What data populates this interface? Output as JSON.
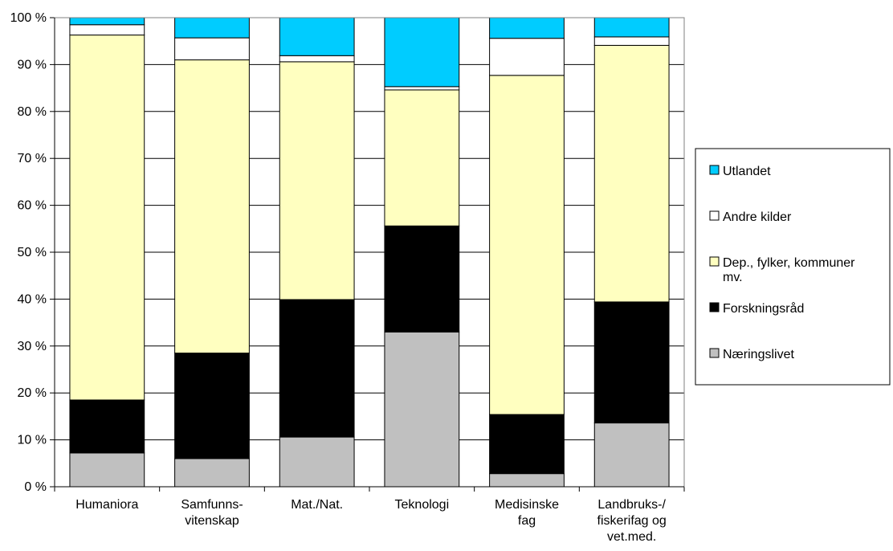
{
  "chart_data": {
    "type": "bar",
    "stacked": true,
    "percent": true,
    "categories": [
      [
        "Humaniora"
      ],
      [
        "Samfunns-",
        "vitenskap"
      ],
      [
        "Mat./Nat."
      ],
      [
        "Teknologi"
      ],
      [
        "Medisinske",
        "fag"
      ],
      [
        "Landbruks-/",
        "fiskerifag og",
        "vet.med."
      ]
    ],
    "y_ticks": [
      "0 %",
      "10 %",
      "20 %",
      "30 %",
      "40 %",
      "50 %",
      "60 %",
      "70 %",
      "80 %",
      "90 %",
      "100 %"
    ],
    "ylim": [
      0,
      100
    ],
    "grid": true,
    "legend_position": "right",
    "series": [
      {
        "name": "Næringslivet",
        "color": "#c0c0c0",
        "values": [
          7.2,
          6.0,
          10.6,
          33.0,
          2.8,
          13.6
        ]
      },
      {
        "name": "Forskningsråd",
        "color": "#000000",
        "values": [
          11.3,
          22.5,
          29.3,
          22.6,
          12.6,
          25.8
        ]
      },
      {
        "name": "Dep., fylker, kommuner mv.",
        "legend_lines": [
          "Dep., fylker, kommuner",
          "mv."
        ],
        "color": "#ffffc0",
        "values": [
          77.8,
          62.5,
          50.7,
          29.0,
          72.3,
          54.7
        ]
      },
      {
        "name": "Andre kilder",
        "color": "#ffffff",
        "values": [
          2.2,
          4.7,
          1.3,
          0.7,
          7.9,
          1.8
        ]
      },
      {
        "name": "Utlandet",
        "color": "#00ccff",
        "values": [
          1.5,
          4.3,
          8.1,
          14.7,
          4.4,
          4.1
        ]
      }
    ]
  }
}
